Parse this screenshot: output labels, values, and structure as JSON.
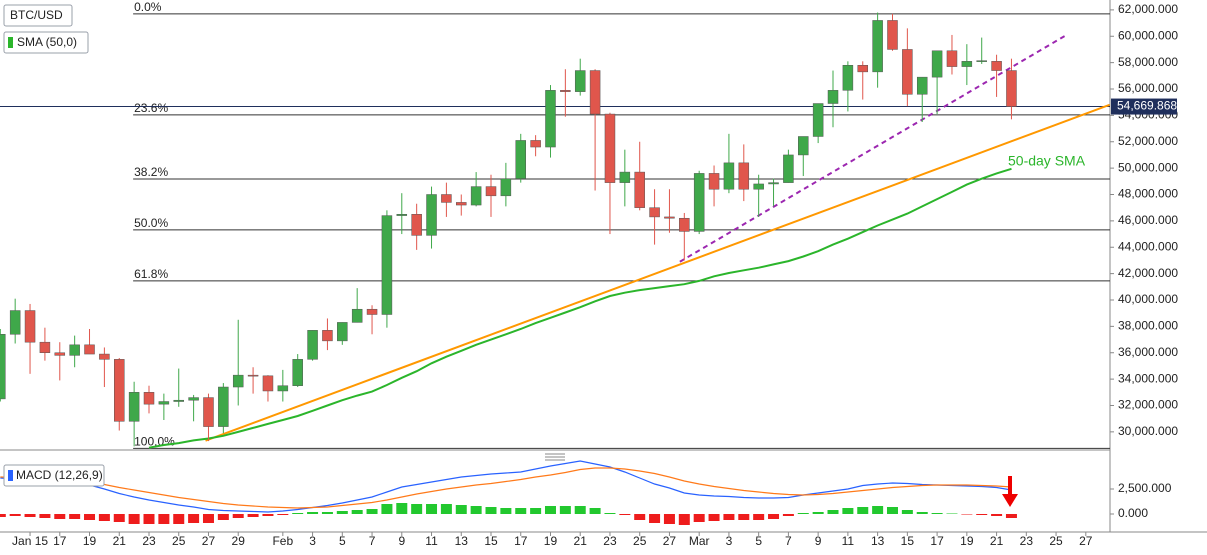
{
  "chart_data": {
    "type": "candlestick",
    "title": "BTC/USD",
    "categories": [
      null,
      null,
      "Jan 15",
      null,
      "17",
      null,
      "19",
      null,
      "21",
      null,
      "23",
      null,
      "25",
      null,
      "27",
      null,
      "29",
      null,
      null,
      "Feb",
      null,
      "3",
      null,
      "5",
      null,
      "7",
      null,
      "9",
      null,
      "11",
      null,
      "13",
      null,
      "15",
      null,
      "17",
      null,
      "19",
      null,
      "21",
      null,
      "23",
      null,
      "25",
      null,
      "27",
      null,
      "Mar",
      null,
      "3",
      null,
      "5",
      null,
      "7",
      null,
      "9",
      null,
      "11",
      null,
      "13",
      null,
      "15",
      null,
      "17",
      null,
      "19",
      null,
      "21",
      null,
      "23",
      null,
      "25",
      null,
      "27"
    ],
    "open": [
      32500,
      37400,
      39200,
      36800,
      36000,
      35800,
      36600,
      35900,
      35500,
      30800,
      33000,
      32100,
      32300,
      32400,
      32600,
      30400,
      33400,
      34300,
      34250,
      33100,
      33500,
      35500,
      37700,
      36900,
      38300,
      39300,
      38900,
      46400,
      46500,
      44900,
      48000,
      47400,
      47200,
      48600,
      47900,
      49200,
      52100,
      51600,
      55900,
      55800,
      57400,
      54100,
      48900,
      49700,
      47000,
      46300,
      46200,
      45200,
      49600,
      48400,
      50400,
      48400,
      48800,
      48900,
      51000,
      52400,
      54900,
      55900,
      57800,
      57300,
      61200,
      59000,
      55600,
      56900,
      58900,
      57700,
      58100,
      58100,
      57400,
      null,
      null,
      null,
      null,
      null
    ],
    "high": [
      37800,
      40100,
      39700,
      37900,
      36800,
      37300,
      37800,
      36400,
      35600,
      33800,
      33500,
      32900,
      34800,
      32800,
      32900,
      33700,
      38500,
      34900,
      34300,
      34700,
      35900,
      37700,
      38600,
      38300,
      40900,
      39600,
      46800,
      48100,
      47300,
      48600,
      48900,
      48000,
      49700,
      49500,
      50400,
      52600,
      52500,
      56300,
      57500,
      58300,
      57500,
      54200,
      51400,
      52000,
      48400,
      48400,
      46600,
      49800,
      50200,
      52600,
      51800,
      49500,
      49200,
      51400,
      52400,
      54900,
      57400,
      58100,
      58100,
      61800,
      61700,
      60600,
      56900,
      58900,
      60100,
      59400,
      59900,
      58600,
      58300,
      null,
      null,
      null,
      null,
      null
    ],
    "low": [
      32300,
      36700,
      34400,
      35400,
      33900,
      34900,
      35900,
      33400,
      30100,
      28900,
      31400,
      30900,
      31900,
      30800,
      29300,
      29900,
      32000,
      32900,
      32300,
      32300,
      33400,
      35400,
      36200,
      36600,
      38300,
      37400,
      37900,
      45000,
      43800,
      43900,
      46300,
      46400,
      47100,
      46300,
      47100,
      48900,
      50900,
      50800,
      53900,
      55500,
      48300,
      45000,
      47100,
      46800,
      44200,
      45100,
      43000,
      45000,
      47100,
      48100,
      47500,
      46300,
      47100,
      48900,
      49400,
      51900,
      53100,
      54300,
      55200,
      56100,
      58900,
      54700,
      53500,
      54100,
      57100,
      56300,
      57900,
      55400,
      53700,
      null,
      null,
      null,
      null,
      null
    ],
    "close": [
      37400,
      39200,
      36800,
      36000,
      35800,
      36600,
      35900,
      35500,
      30800,
      33000,
      32100,
      32300,
      32400,
      32600,
      30400,
      33400,
      34300,
      34250,
      33100,
      33500,
      35500,
      37700,
      36900,
      38300,
      39300,
      38900,
      46400,
      46500,
      44900,
      48000,
      47400,
      47200,
      48600,
      47900,
      49200,
      52100,
      51600,
      55900,
      55800,
      57400,
      54100,
      48900,
      49700,
      47000,
      46300,
      46200,
      45200,
      49600,
      48400,
      50400,
      48400,
      48800,
      48900,
      51000,
      52400,
      54900,
      55900,
      57800,
      57300,
      61200,
      59000,
      55600,
      56900,
      58900,
      57700,
      58100,
      58150,
      57400,
      54670,
      null,
      null,
      null,
      null,
      null
    ],
    "up_color": "#3fa84a",
    "down_color": "#e0564c",
    "ylim": [
      28700,
      62750
    ],
    "yticks": [
      {
        "value": 30000,
        "label": "30,000.000"
      },
      {
        "value": 32000,
        "label": "32,000.000"
      },
      {
        "value": 34000,
        "label": "34,000.000"
      },
      {
        "value": 36000,
        "label": "36,000.000"
      },
      {
        "value": 38000,
        "label": "38,000.000"
      },
      {
        "value": 40000,
        "label": "40,000.000"
      },
      {
        "value": 42000,
        "label": "42,000.000"
      },
      {
        "value": 44000,
        "label": "44,000.000"
      },
      {
        "value": 46000,
        "label": "46,000.000"
      },
      {
        "value": 48000,
        "label": "48,000.000"
      },
      {
        "value": 50000,
        "label": "50,000.000"
      },
      {
        "value": 52000,
        "label": "52,000.000"
      },
      {
        "value": 54000,
        "label": "54,000.000"
      },
      {
        "value": 56000,
        "label": "56,000.000"
      },
      {
        "value": 58000,
        "label": "58,000.000"
      },
      {
        "value": 60000,
        "label": "60,000.000"
      },
      {
        "value": 62000,
        "label": "62,000.000"
      }
    ],
    "sma": {
      "name": "SMA (50,0)",
      "color": "#2bb52b",
      "values": [
        null,
        null,
        null,
        null,
        null,
        null,
        null,
        null,
        null,
        null,
        28800,
        29000,
        29150,
        29350,
        29500,
        29700,
        30000,
        30300,
        30600,
        30900,
        31200,
        31600,
        32000,
        32400,
        32750,
        33050,
        33550,
        34100,
        34600,
        35200,
        35700,
        36150,
        36600,
        37000,
        37400,
        37800,
        38250,
        38650,
        39050,
        39450,
        39900,
        40300,
        40550,
        40750,
        40900,
        41050,
        41200,
        41450,
        41800,
        42050,
        42250,
        42450,
        42700,
        42950,
        43300,
        43700,
        44200,
        44650,
        45150,
        45650,
        46100,
        46550,
        47100,
        47650,
        48200,
        48750,
        49200,
        49600,
        49950,
        null,
        null,
        null,
        null,
        null
      ]
    },
    "sma_label": "50-day SMA",
    "last_price": {
      "value": 54669.868,
      "label": "54,669.868"
    },
    "fib_levels": [
      {
        "label": "0.0%",
        "value": 61700
      },
      {
        "label": "23.6%",
        "value": 54040
      },
      {
        "label": "38.2%",
        "value": 49180
      },
      {
        "label": "50.0%",
        "value": 45320
      },
      {
        "label": "61.8%",
        "value": 41450
      },
      {
        "label": "100.0%",
        "value": 28750
      }
    ],
    "trend_lines": [
      {
        "color": "#ff9800",
        "dashed": false,
        "points": [
          [
            13.8,
            29330
          ],
          [
            74.6,
            54800
          ]
        ]
      },
      {
        "color": "#9c27b0",
        "dashed": true,
        "points": [
          [
            45.7,
            42900
          ],
          [
            71.6,
            60030
          ]
        ]
      }
    ],
    "macd": {
      "name": "MACD (12,26,9)",
      "ylim": [
        -1600,
        5400
      ],
      "yticks": [
        {
          "value": 0,
          "label": "0.000"
        },
        {
          "value": 2500,
          "label": "2,500.000"
        }
      ],
      "series": [
        {
          "color": "#2962ff",
          "values": [
            3600,
            3500,
            3400,
            3300,
            3200,
            3050,
            2900,
            2500,
            2050,
            1700,
            1400,
            1150,
            900,
            700,
            450,
            350,
            300,
            250,
            200,
            300,
            450,
            650,
            850,
            1100,
            1400,
            1700,
            2200,
            2700,
            2950,
            3200,
            3450,
            3700,
            3850,
            4000,
            4100,
            4200,
            4500,
            4800,
            5050,
            5300,
            5000,
            4700,
            4200,
            3600,
            3000,
            2600,
            2100,
            1900,
            1800,
            1750,
            1650,
            1600,
            1600,
            1650,
            1900,
            2100,
            2300,
            2500,
            2850,
            3000,
            3100,
            3050,
            2950,
            2900,
            2850,
            2800,
            2750,
            2650,
            2400,
            null,
            null,
            null,
            null,
            null
          ]
        },
        {
          "color": "#ff7a1a",
          "values": [
            3700,
            3650,
            3600,
            3550,
            3450,
            3300,
            3150,
            2950,
            2650,
            2400,
            2150,
            1900,
            1650,
            1450,
            1250,
            1050,
            900,
            800,
            700,
            650,
            600,
            650,
            700,
            850,
            1000,
            1150,
            1400,
            1700,
            2000,
            2250,
            2500,
            2700,
            2900,
            3050,
            3250,
            3450,
            3700,
            3900,
            4150,
            4450,
            4600,
            4600,
            4500,
            4300,
            4050,
            3700,
            3300,
            3000,
            2750,
            2550,
            2350,
            2200,
            2050,
            1950,
            1900,
            1950,
            2050,
            2200,
            2350,
            2500,
            2650,
            2750,
            2850,
            2900,
            2900,
            2900,
            2850,
            2800,
            2700,
            null,
            null,
            null,
            null,
            null
          ]
        }
      ],
      "histogram": {
        "up_color": "#22c82e",
        "down_color": "#ee1c1c",
        "values": [
          -300,
          -200,
          -300,
          -400,
          -500,
          -500,
          -600,
          -700,
          -800,
          -1000,
          -1000,
          -1000,
          -1000,
          -900,
          -900,
          -600,
          -400,
          -300,
          -200,
          -100,
          100,
          200,
          200,
          300,
          400,
          500,
          1000,
          1100,
          1000,
          1000,
          1000,
          900,
          800,
          700,
          600,
          600,
          600,
          800,
          800,
          800,
          600,
          100,
          -100,
          -600,
          -900,
          -1000,
          -1100,
          -800,
          -700,
          -600,
          -600,
          -600,
          -500,
          -200,
          100,
          200,
          400,
          600,
          700,
          800,
          700,
          400,
          200,
          100,
          50,
          -50,
          -100,
          -200,
          -400,
          null,
          null,
          null,
          null,
          null
        ]
      }
    }
  }
}
